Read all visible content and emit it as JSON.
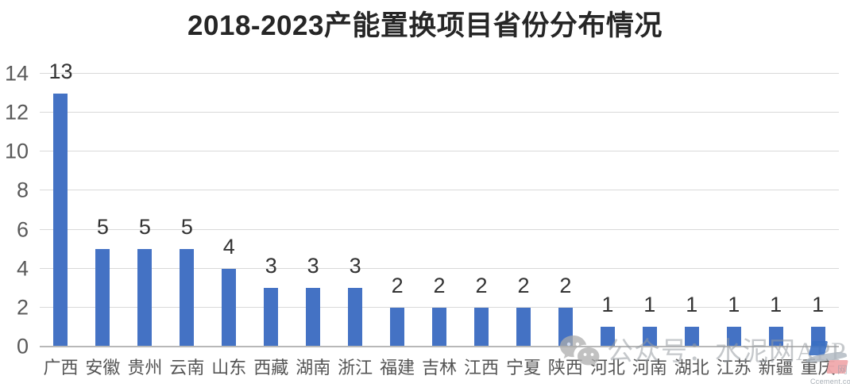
{
  "title": "2018-2023产能置换项目省份分布情况",
  "chart_data": {
    "type": "bar",
    "title": "2018-2023产能置换项目省份分布情况",
    "categories": [
      "广西",
      "安徽",
      "贵州",
      "云南",
      "山东",
      "西藏",
      "湖南",
      "浙江",
      "福建",
      "吉林",
      "江西",
      "宁夏",
      "陕西",
      "河北",
      "河南",
      "湖北",
      "江苏",
      "新疆",
      "重庆"
    ],
    "values": [
      13,
      5,
      5,
      5,
      4,
      3,
      3,
      3,
      2,
      2,
      2,
      2,
      2,
      1,
      1,
      1,
      1,
      1,
      1
    ],
    "xlabel": "",
    "ylabel": "",
    "ylim": [
      0,
      14
    ],
    "yticks": [
      0,
      2,
      4,
      6,
      8,
      10,
      12,
      14
    ],
    "grid": true,
    "legend": false,
    "data_labels": true,
    "bar_color": "#4472C4"
  },
  "watermark": {
    "wechat_label": "公众号：水泥网APP",
    "logo_cn": "网",
    "logo_domain": "Ccement.com"
  },
  "colors": {
    "bar": "#4472C4",
    "gridline": "#D9D9D9",
    "axis_line": "#B8B8B8",
    "tick_label": "#595959",
    "x_label": "#545454",
    "data_label": "#333333",
    "title": "#262626",
    "watermark_text": "rgba(150,154,160,0.55)"
  }
}
